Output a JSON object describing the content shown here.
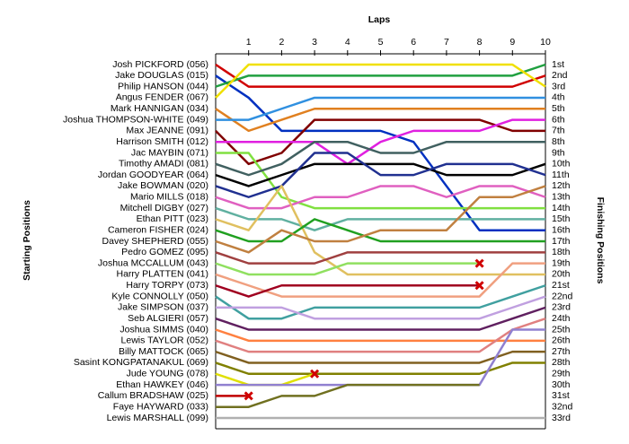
{
  "chart_data": {
    "type": "line",
    "title": "Laps",
    "y_label_left": "Starting Positions",
    "y_label_right": "Finishing Positions",
    "x": [
      0,
      1,
      2,
      3,
      4,
      5,
      6,
      7,
      8,
      9,
      10
    ],
    "xlim": [
      0,
      10
    ],
    "xticks": [
      1,
      2,
      3,
      4,
      5,
      6,
      7,
      8,
      9,
      10
    ],
    "ylim": [
      1,
      33
    ],
    "finishing_labels": [
      "1st",
      "2nd",
      "3rd",
      "4th",
      "5th",
      "6th",
      "7th",
      "8th",
      "9th",
      "10th",
      "11th",
      "12th",
      "13th",
      "14th",
      "15th",
      "16th",
      "17th",
      "18th",
      "19th",
      "20th",
      "21st",
      "22nd",
      "23rd",
      "24th",
      "25th",
      "26th",
      "27th",
      "28th",
      "29th",
      "30th",
      "31st",
      "32nd",
      "33rd"
    ],
    "series": [
      {
        "name": "Josh PICKFORD (056)",
        "color": "#d00000",
        "values": [
          1,
          3,
          3,
          3,
          3,
          3,
          3,
          3,
          3,
          3,
          2
        ]
      },
      {
        "name": "Jake DOUGLAS (015)",
        "color": "#0030c0",
        "values": [
          2,
          4,
          7,
          7,
          7,
          7,
          8,
          12,
          16,
          16,
          16
        ]
      },
      {
        "name": "Philip HANSON (044)",
        "color": "#20a040",
        "values": [
          3,
          2,
          2,
          2,
          2,
          2,
          2,
          2,
          2,
          2,
          1
        ]
      },
      {
        "name": "Angus FENDER (067)",
        "color": "#f0e000",
        "values": [
          4,
          1,
          1,
          1,
          1,
          1,
          1,
          1,
          1,
          1,
          3
        ]
      },
      {
        "name": "Mark HANNIGAN (034)",
        "color": "#e08020",
        "values": [
          5,
          7,
          6,
          5,
          5,
          5,
          5,
          5,
          5,
          5,
          5
        ]
      },
      {
        "name": "Joshua THOMPSON-WHITE (049)",
        "color": "#3090e0",
        "values": [
          6,
          6,
          5,
          4,
          4,
          4,
          4,
          4,
          4,
          4,
          4
        ]
      },
      {
        "name": "Max JEANNE (091)",
        "color": "#800000",
        "values": [
          7,
          10,
          9,
          6,
          6,
          6,
          6,
          6,
          6,
          7,
          7
        ]
      },
      {
        "name": "Harrison SMITH (012)",
        "color": "#e020e0",
        "values": [
          8,
          8,
          8,
          8,
          10,
          8,
          7,
          7,
          7,
          6,
          6
        ]
      },
      {
        "name": "Jac MAYBIN (071)",
        "color": "#80e040",
        "values": [
          9,
          9,
          13,
          14,
          14,
          14,
          14,
          14,
          14,
          14,
          14
        ]
      },
      {
        "name": "Timothy AMADI (081)",
        "color": "#406060",
        "values": [
          10,
          11,
          10,
          8,
          8,
          9,
          9,
          8,
          8,
          8,
          8
        ]
      },
      {
        "name": "Jordan GOODYEAR (064)",
        "color": "#000000",
        "values": [
          11,
          12,
          11,
          10,
          10,
          10,
          10,
          11,
          11,
          11,
          10
        ]
      },
      {
        "name": "Jake BOWMAN (020)",
        "color": "#203090",
        "values": [
          12,
          13,
          12,
          9,
          9,
          11,
          11,
          10,
          10,
          10,
          11
        ]
      },
      {
        "name": "Mario MILLS (018)",
        "color": "#e060c0",
        "values": [
          13,
          14,
          14,
          13,
          13,
          12,
          12,
          13,
          12,
          12,
          13
        ]
      },
      {
        "name": "Mitchell DIGBY (027)",
        "color": "#60b0a0",
        "values": [
          14,
          15,
          15,
          16,
          15,
          15,
          15,
          15,
          15,
          15,
          15
        ]
      },
      {
        "name": "Ethan PITT (023)",
        "color": "#e0c060",
        "values": [
          15,
          16,
          12,
          18,
          20,
          20,
          20,
          20,
          20,
          20,
          20
        ]
      },
      {
        "name": "Cameron FISHER (024)",
        "color": "#20a020",
        "values": [
          16,
          17,
          17,
          15,
          16,
          17,
          17,
          17,
          17,
          17,
          17
        ]
      },
      {
        "name": "Davey SHEPHERD (055)",
        "color": "#c08040",
        "values": [
          17,
          18,
          16,
          17,
          17,
          16,
          16,
          16,
          13,
          13,
          12
        ]
      },
      {
        "name": "Pedro GOMEZ (095)",
        "color": "#a04040",
        "values": [
          18,
          19,
          19,
          19,
          18,
          18,
          18,
          18,
          18,
          18,
          18
        ]
      },
      {
        "name": "Joshua MCCALLUM (043)",
        "color": "#90e060",
        "values": [
          19,
          20,
          20,
          20,
          19,
          19,
          19,
          19,
          19,
          null,
          null
        ]
      },
      {
        "name": "Harry PLATTEN (041)",
        "color": "#f0a080",
        "values": [
          20,
          21,
          22,
          22,
          22,
          22,
          22,
          22,
          22,
          19,
          19
        ]
      },
      {
        "name": "Harry TORPY (073)",
        "color": "#a00020",
        "values": [
          21,
          22,
          21,
          21,
          21,
          21,
          21,
          21,
          21,
          null,
          null
        ]
      },
      {
        "name": "Kyle CONNOLLY (050)",
        "color": "#40a0a0",
        "values": [
          22,
          24,
          24,
          23,
          23,
          23,
          23,
          23,
          23,
          22,
          21
        ]
      },
      {
        "name": "Jake SIMPSON (037)",
        "color": "#c0a0e0",
        "values": [
          23,
          23,
          23,
          24,
          24,
          24,
          24,
          24,
          24,
          23,
          22
        ]
      },
      {
        "name": "Seb ALGIERI (057)",
        "color": "#602060",
        "values": [
          24,
          25,
          25,
          25,
          25,
          25,
          25,
          25,
          25,
          24,
          23
        ]
      },
      {
        "name": "Joshua SIMMS (040)",
        "color": "#ff8040",
        "values": [
          25,
          26,
          26,
          26,
          26,
          26,
          26,
          26,
          26,
          26,
          26
        ]
      },
      {
        "name": "Lewis TAYLOR (052)",
        "color": "#e08080",
        "values": [
          26,
          27,
          27,
          27,
          27,
          27,
          27,
          27,
          27,
          25,
          24
        ]
      },
      {
        "name": "Billy MATTOCK (065)",
        "color": "#806020",
        "values": [
          27,
          28,
          28,
          28,
          28,
          28,
          28,
          28,
          28,
          27,
          27
        ]
      },
      {
        "name": "Sasint KONGPATANAKUL (069)",
        "color": "#808000",
        "values": [
          28,
          29,
          29,
          29,
          29,
          29,
          29,
          29,
          29,
          28,
          28
        ]
      },
      {
        "name": "Jude YOUNG (078)",
        "color": "#e0e000",
        "values": [
          29,
          30,
          30,
          29,
          null,
          null,
          null,
          null,
          null,
          null,
          null
        ]
      },
      {
        "name": "Ethan HAWKEY (046)",
        "color": "#9080d0",
        "values": [
          30,
          30,
          30,
          30,
          30,
          30,
          30,
          30,
          30,
          25,
          25
        ]
      },
      {
        "name": "Callum BRADSHAW (025)",
        "color": "#c00000",
        "values": [
          31,
          31,
          null,
          null,
          null,
          null,
          null,
          null,
          null,
          null,
          null
        ]
      },
      {
        "name": "Faye HAYWARD (033)",
        "color": "#707020",
        "values": [
          32,
          32,
          31,
          31,
          30,
          30,
          30,
          30,
          30,
          null,
          null
        ]
      },
      {
        "name": "Lewis MARSHALL (099)",
        "color": "#b0b0b0",
        "values": [
          33,
          33,
          33,
          33,
          33,
          33,
          33,
          33,
          33,
          33,
          33
        ]
      }
    ],
    "markers": [
      {
        "x": 8,
        "y": 19
      },
      {
        "x": 8,
        "y": 21
      },
      {
        "x": 3,
        "y": 29
      },
      {
        "x": 1,
        "y": 31
      }
    ]
  }
}
